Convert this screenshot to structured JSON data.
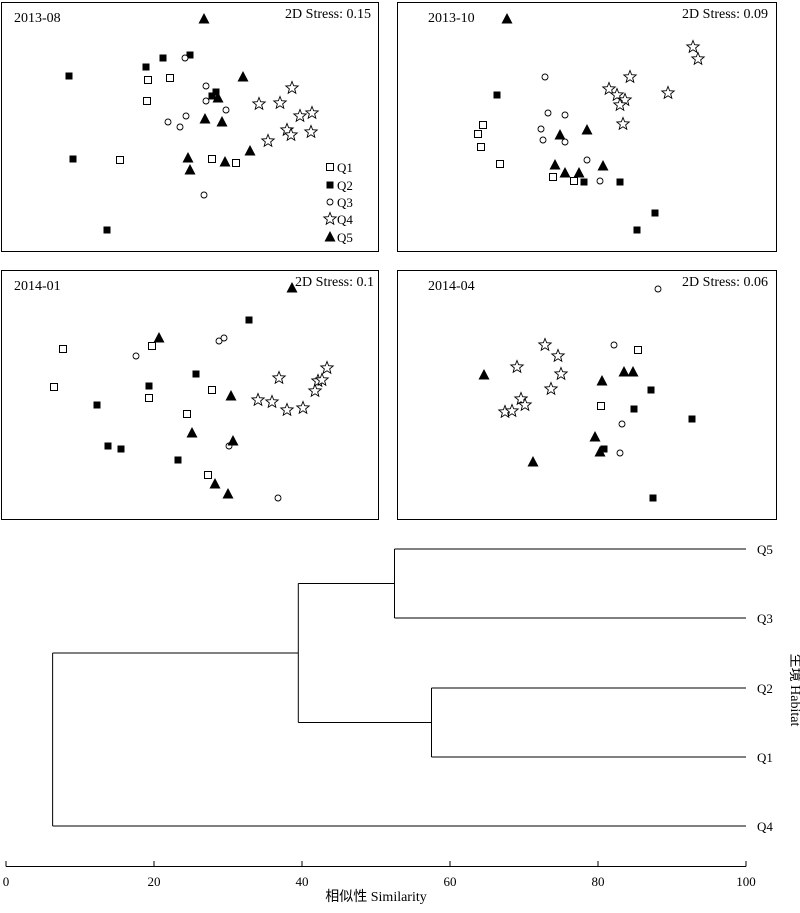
{
  "chart_data": [
    {
      "type": "scatter",
      "panel": "2013-08",
      "title": "2013-08",
      "stress_text": "2D Stress: 0.15",
      "legend": [
        "Q1",
        "Q2",
        "Q3",
        "Q4",
        "Q5"
      ],
      "legend_placement": "bottom-right",
      "axes_visible": false,
      "series": [
        {
          "name": "Q1",
          "marker": "open-square",
          "points": [
            [
              148,
              80
            ],
            [
              170,
              78
            ],
            [
              147,
              101
            ],
            [
              120,
              160
            ],
            [
              212,
              159
            ],
            [
              236,
              163
            ]
          ]
        },
        {
          "name": "Q2",
          "marker": "filled-square",
          "points": [
            [
              69,
              76
            ],
            [
              146,
              67
            ],
            [
              163,
              58
            ],
            [
              190,
              55
            ],
            [
              216,
              92
            ],
            [
              212,
              96
            ],
            [
              73,
              159
            ],
            [
              107,
              230
            ]
          ]
        },
        {
          "name": "Q3",
          "marker": "open-circle",
          "points": [
            [
              185,
              58
            ],
            [
              206,
              86
            ],
            [
              206,
              101
            ],
            [
              226,
              110
            ],
            [
              186,
              116
            ],
            [
              168,
              122
            ],
            [
              180,
              127
            ],
            [
              204,
              195
            ]
          ]
        },
        {
          "name": "Q4",
          "marker": "open-star",
          "points": [
            [
              292,
              88
            ],
            [
              259,
              104
            ],
            [
              280,
              103
            ],
            [
              300,
              116
            ],
            [
              312,
              113
            ],
            [
              287,
              130
            ],
            [
              268,
              141
            ],
            [
              311,
              132
            ],
            [
              291,
              135
            ]
          ]
        },
        {
          "name": "Q5",
          "marker": "filled-triangle",
          "points": [
            [
              204,
              19
            ],
            [
              243,
              77
            ],
            [
              218,
              98
            ],
            [
              205,
              119
            ],
            [
              222,
              122
            ],
            [
              250,
              151
            ],
            [
              225,
              162
            ],
            [
              188,
              158
            ],
            [
              190,
              170
            ]
          ]
        }
      ]
    },
    {
      "type": "scatter",
      "panel": "2013-10",
      "title": "2013-10",
      "stress_text": "2D Stress: 0.09",
      "axes_visible": false,
      "series": [
        {
          "name": "Q1",
          "marker": "open-square",
          "points": [
            [
              483,
              125
            ],
            [
              478,
              134
            ],
            [
              481,
              147
            ],
            [
              500,
              164
            ],
            [
              553,
              177
            ],
            [
              574,
              181
            ]
          ]
        },
        {
          "name": "Q2",
          "marker": "filled-square",
          "points": [
            [
              497,
              95
            ],
            [
              584,
              182
            ],
            [
              620,
              182
            ],
            [
              655,
              213
            ],
            [
              637,
              230
            ]
          ]
        },
        {
          "name": "Q3",
          "marker": "open-circle",
          "points": [
            [
              545,
              77
            ],
            [
              548,
              113
            ],
            [
              565,
              115
            ],
            [
              541,
              129
            ],
            [
              543,
              140
            ],
            [
              565,
              142
            ],
            [
              587,
              160
            ],
            [
              600,
              181
            ]
          ]
        },
        {
          "name": "Q4",
          "marker": "open-star",
          "points": [
            [
              693,
              47
            ],
            [
              698,
              59
            ],
            [
              630,
              77
            ],
            [
              609,
              89
            ],
            [
              617,
              95
            ],
            [
              625,
              100
            ],
            [
              620,
              105
            ],
            [
              668,
              93
            ],
            [
              623,
              124
            ]
          ]
        },
        {
          "name": "Q5",
          "marker": "filled-triangle",
          "points": [
            [
              507,
              19
            ],
            [
              560,
              135
            ],
            [
              587,
              130
            ],
            [
              555,
              165
            ],
            [
              565,
              173
            ],
            [
              579,
              173
            ],
            [
              603,
              166
            ]
          ]
        }
      ]
    },
    {
      "type": "scatter",
      "panel": "2014-01",
      "title": "2014-01",
      "stress_text": "2D Stress: 0.1",
      "axes_visible": false,
      "series": [
        {
          "name": "Q1",
          "marker": "open-square",
          "points": [
            [
              63,
              349
            ],
            [
              152,
              346
            ],
            [
              54,
              387
            ],
            [
              149,
              398
            ],
            [
              187,
              414
            ],
            [
              212,
              390
            ],
            [
              208,
              475
            ]
          ]
        },
        {
          "name": "Q2",
          "marker": "filled-square",
          "points": [
            [
              249,
              320
            ],
            [
              196,
              374
            ],
            [
              149,
              386
            ],
            [
              97,
              405
            ],
            [
              108,
              446
            ],
            [
              121,
              449
            ],
            [
              178,
              460
            ]
          ]
        },
        {
          "name": "Q3",
          "marker": "open-circle",
          "points": [
            [
              219,
              341
            ],
            [
              224,
              338
            ],
            [
              136,
              356
            ],
            [
              229,
              446
            ],
            [
              278,
              498
            ]
          ]
        },
        {
          "name": "Q4",
          "marker": "open-star",
          "points": [
            [
              327,
              368
            ],
            [
              318,
              381
            ],
            [
              322,
              380
            ],
            [
              279,
              378
            ],
            [
              258,
              400
            ],
            [
              272,
              402
            ],
            [
              287,
              410
            ],
            [
              303,
              408
            ],
            [
              315,
              391
            ]
          ]
        },
        {
          "name": "Q5",
          "marker": "filled-triangle",
          "points": [
            [
              292,
              288
            ],
            [
              159,
              338
            ],
            [
              231,
              396
            ],
            [
              192,
              433
            ],
            [
              233,
              441
            ],
            [
              215,
              484
            ],
            [
              228,
              494
            ]
          ]
        }
      ]
    },
    {
      "type": "scatter",
      "panel": "2014-04",
      "title": "2014-04",
      "stress_text": "2D Stress: 0.06",
      "axes_visible": false,
      "series": [
        {
          "name": "Q1",
          "marker": "open-square",
          "points": [
            [
              638,
              350
            ],
            [
              601,
              406
            ]
          ]
        },
        {
          "name": "Q2",
          "marker": "filled-square",
          "points": [
            [
              651,
              390
            ],
            [
              692,
              419
            ],
            [
              634,
              409
            ],
            [
              604,
              449
            ],
            [
              653,
              498
            ]
          ]
        },
        {
          "name": "Q3",
          "marker": "open-circle",
          "points": [
            [
              658,
              289
            ],
            [
              614,
              345
            ],
            [
              622,
              424
            ],
            [
              620,
              453
            ]
          ]
        },
        {
          "name": "Q4",
          "marker": "open-star",
          "points": [
            [
              545,
              345
            ],
            [
              558,
              356
            ],
            [
              517,
              367
            ],
            [
              561,
              374
            ],
            [
              551,
              389
            ],
            [
              521,
              399
            ],
            [
              525,
              405
            ],
            [
              505,
              412
            ],
            [
              512,
              411
            ]
          ]
        },
        {
          "name": "Q5",
          "marker": "filled-triangle",
          "points": [
            [
              484,
              375
            ],
            [
              602,
              381
            ],
            [
              624,
              372
            ],
            [
              633,
              372
            ],
            [
              595,
              437
            ],
            [
              600,
              452
            ],
            [
              533,
              462
            ]
          ]
        }
      ]
    },
    {
      "type": "dendrogram",
      "xlabel": "相似性 Similarity",
      "ylabel": "生境 Habitat",
      "xlim": [
        0,
        100
      ],
      "xticks": [
        0,
        20,
        40,
        60,
        80,
        100
      ],
      "leaves": [
        "Q5",
        "Q3",
        "Q2",
        "Q1",
        "Q4"
      ],
      "merges": [
        {
          "members": [
            "Q5",
            "Q3"
          ],
          "similarity": 52.5
        },
        {
          "members": [
            "Q2",
            "Q1"
          ],
          "similarity": 57.5
        },
        {
          "members": [
            "Q5+Q3",
            "Q2+Q1"
          ],
          "similarity": 39.5
        },
        {
          "members": [
            "Q5+Q3+Q2+Q1",
            "Q4"
          ],
          "similarity": 6.3
        }
      ]
    }
  ]
}
